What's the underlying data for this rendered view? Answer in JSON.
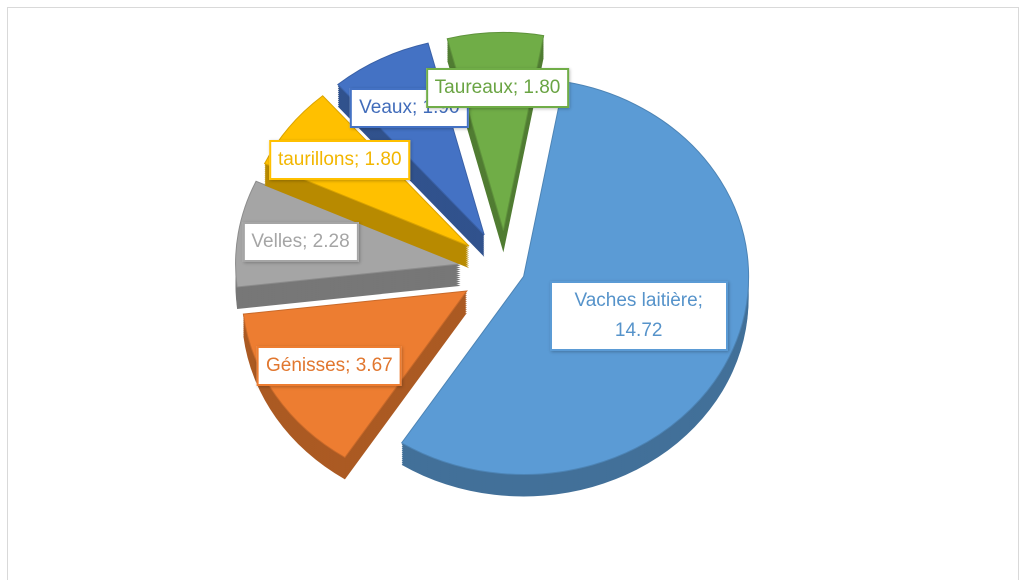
{
  "chart_data": {
    "type": "pie",
    "categories": [
      "Vaches laitière",
      "Génisses",
      "Velles",
      "taurillons",
      "Veaux",
      "Taureaux"
    ],
    "values": [
      14.72,
      3.67,
      2.28,
      1.8,
      1.9,
      1.8
    ],
    "value_labels": [
      "Vaches laitière; 14.72",
      "Génisses; 3.67",
      "Velles; 2.28",
      "taurillons; 1.80",
      "Veaux; 1.90",
      "Taureaux; 1.80"
    ],
    "colors": [
      "#5b9bd5",
      "#ed7d31",
      "#a5a5a5",
      "#ffc000",
      "#4472c4",
      "#70ad47"
    ],
    "exploded": true,
    "three_d": true
  }
}
